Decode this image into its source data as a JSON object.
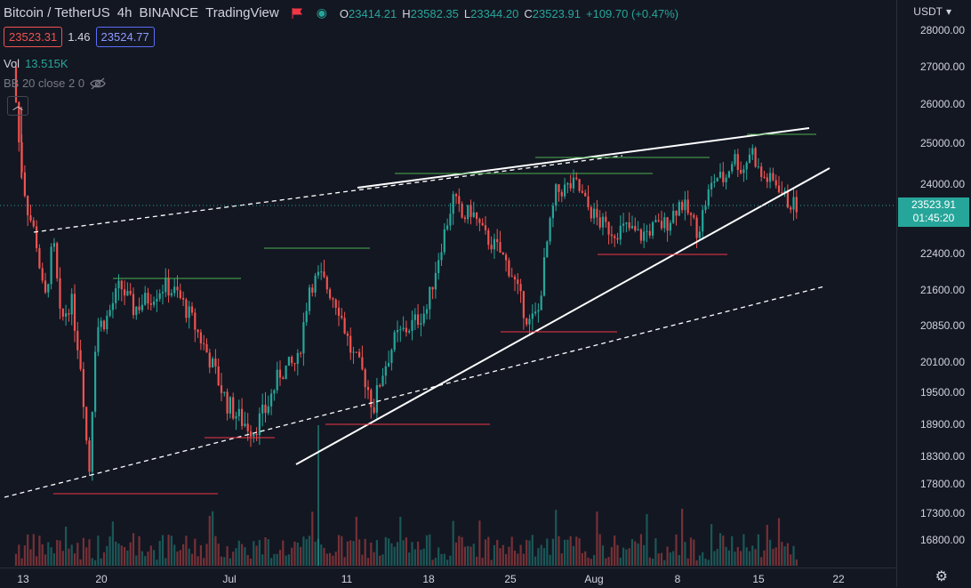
{
  "legend": {
    "symbol": "Bitcoin / TetherUS",
    "interval": "4h",
    "exchange": "BINANCE",
    "source": "TradingView",
    "open_label": "O",
    "open": "23414.21",
    "high_label": "H",
    "high": "23582.35",
    "low_label": "L",
    "low": "23344.20",
    "close_label": "C",
    "close": "23523.91",
    "change": "+109.70 (+0.47%)"
  },
  "trade": {
    "sell_price": "23523.31",
    "spread": "1.46",
    "buy_price": "23524.77"
  },
  "volume": {
    "label": "Vol",
    "value": "13.515K"
  },
  "indicator": {
    "label": "BB 20 close 2 0"
  },
  "currency": "USDT",
  "price_axis": {
    "ticks": [
      "28000.00",
      "27000.00",
      "26000.00",
      "25000.00",
      "24000.00",
      "22400.00",
      "21600.00",
      "20850.00",
      "20100.00",
      "19500.00",
      "18900.00",
      "18300.00",
      "17800.00",
      "17300.00",
      "16800.00"
    ],
    "last_price": "23523.91",
    "countdown": "01:45:20"
  },
  "time_axis": {
    "ticks": [
      "13",
      "20",
      "Jul",
      "11",
      "18",
      "25",
      "Aug",
      "8",
      "15",
      "22"
    ]
  },
  "colors": {
    "up": "#26a69a",
    "down": "#ef5350",
    "background": "#131722",
    "level_green": "#4caf50",
    "level_red": "#f23645"
  }
}
